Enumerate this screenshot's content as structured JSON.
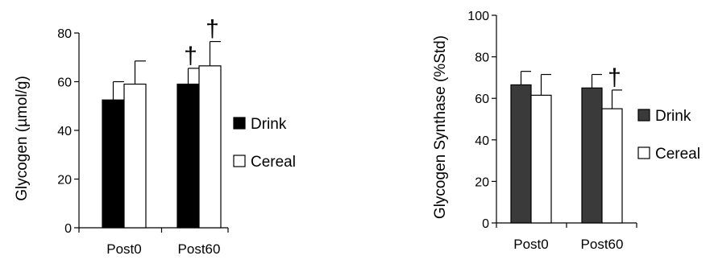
{
  "chart_data": [
    {
      "type": "bar",
      "title": "",
      "xlabel": "",
      "ylabel": "Glycogen (µmol/g)",
      "ylim": [
        0,
        80
      ],
      "yticks": [
        0,
        20,
        40,
        60,
        80
      ],
      "categories": [
        "Post0",
        "Post60"
      ],
      "series": [
        {
          "name": "Drink",
          "values": [
            52.5,
            59
          ],
          "error": [
            7.5,
            6.5
          ],
          "color": "#000000"
        },
        {
          "name": "Cereal",
          "values": [
            59,
            66.5
          ],
          "error": [
            9.5,
            10
          ],
          "color": "#ffffff"
        }
      ],
      "annotations": [
        {
          "text": "†",
          "category": "Post60",
          "series": "Drink"
        },
        {
          "text": "†",
          "category": "Post60",
          "series": "Cereal"
        }
      ],
      "legend_position": "right",
      "grid": false
    },
    {
      "type": "bar",
      "title": "",
      "xlabel": "",
      "ylabel": "Glycogen Synthase (%Std)",
      "ylim": [
        0,
        100
      ],
      "yticks": [
        0,
        20,
        40,
        60,
        80,
        100
      ],
      "categories": [
        "Post0",
        "Post60"
      ],
      "series": [
        {
          "name": "Drink",
          "values": [
            66.5,
            65
          ],
          "error": [
            6.5,
            6.5
          ],
          "color": "#3a3a3a"
        },
        {
          "name": "Cereal",
          "values": [
            61.5,
            55
          ],
          "error": [
            10,
            9
          ],
          "color": "#ffffff"
        }
      ],
      "annotations": [
        {
          "text": "†",
          "category": "Post60",
          "series": "Cereal"
        }
      ],
      "legend_position": "right",
      "grid": false
    }
  ]
}
